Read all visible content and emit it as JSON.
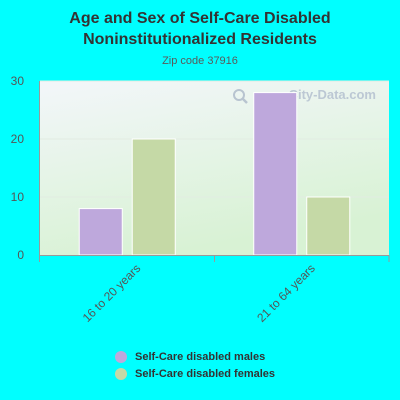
{
  "chart_data": {
    "type": "bar",
    "title_line1": "Age and Sex of Self-Care Disabled",
    "title_line2": "Noninstitutionalized Residents",
    "subtitle": "Zip code 37916",
    "categories": [
      "16 to 20 years",
      "21 to 64 years"
    ],
    "series": [
      {
        "name": "Self-Care disabled males",
        "values": [
          8,
          28
        ],
        "color": "#bea8dc"
      },
      {
        "name": "Self-Care disabled females",
        "values": [
          20,
          10
        ],
        "color": "#c5d9a6"
      }
    ],
    "ylim": [
      0,
      30
    ],
    "yticks": [
      0,
      10,
      20,
      30
    ],
    "grid": true,
    "legend_position": "bottom"
  },
  "watermark": {
    "text": "City-Data.com",
    "icon": "magnifier-icon"
  },
  "colors": {
    "background": "#00ffff",
    "plot_top": "#f3f6fa",
    "plot_bottom": "#d8f2d4"
  }
}
